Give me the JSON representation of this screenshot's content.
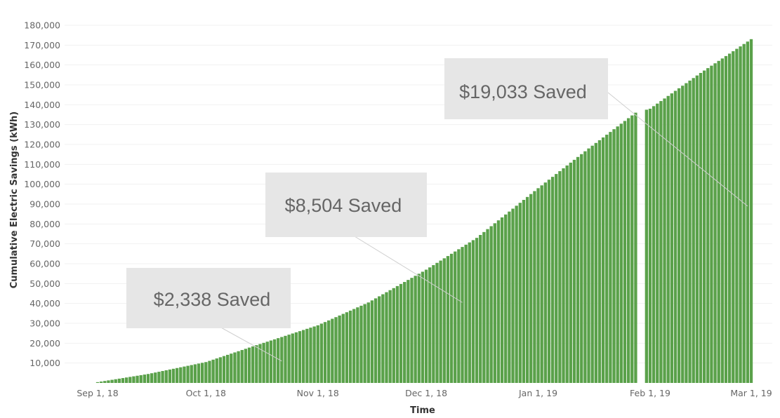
{
  "chart_data": {
    "type": "bar",
    "ylabel": "Cumulative Electric Savings (kWh)",
    "xlabel": "Time",
    "ylim": [
      0,
      180000
    ],
    "y_ticks": [
      10000,
      20000,
      30000,
      40000,
      50000,
      60000,
      70000,
      80000,
      90000,
      100000,
      110000,
      120000,
      130000,
      140000,
      150000,
      160000,
      170000,
      180000
    ],
    "y_tick_labels": [
      "10,000",
      "20,000",
      "30,000",
      "40,000",
      "50,000",
      "60,000",
      "70,000",
      "80,000",
      "90,000",
      "100,000",
      "110,000",
      "120,000",
      "130,000",
      "140,000",
      "150,000",
      "160,000",
      "170,000",
      "180,000"
    ],
    "x_ticks": [
      {
        "date": "2018-09-01",
        "label": "Sep 1, 18"
      },
      {
        "date": "2018-10-01",
        "label": "Oct 1, 18"
      },
      {
        "date": "2018-11-01",
        "label": "Nov 1, 18"
      },
      {
        "date": "2018-12-01",
        "label": "Dec 1, 18"
      },
      {
        "date": "2019-01-01",
        "label": "Jan 1, 19"
      },
      {
        "date": "2019-02-01",
        "label": "Feb 1, 19"
      },
      {
        "date": "2019-03-01",
        "label": "Mar 1, 19"
      }
    ],
    "bar_color": "#5aa14a",
    "series": [
      {
        "points": [
          [
            "2018-09-01",
            400
          ],
          [
            "2018-09-15",
            4500
          ],
          [
            "2018-10-01",
            10500
          ],
          [
            "2018-10-15",
            19000
          ],
          [
            "2018-11-01",
            29000
          ],
          [
            "2018-11-15",
            40500
          ],
          [
            "2018-12-01",
            57000
          ],
          [
            "2018-12-15",
            73000
          ],
          [
            "2019-01-01",
            98000
          ],
          [
            "2019-01-15",
            118000
          ],
          [
            "2019-01-28",
            136000
          ],
          [
            "2019-02-01",
            138000
          ],
          [
            "2019-02-15",
            156000
          ],
          [
            "2019-03-01",
            173000
          ]
        ],
        "gap_dates": [
          "2019-01-29",
          "2019-01-30"
        ]
      }
    ],
    "grid": "horizontal",
    "annotations": [
      {
        "text": "$2,338 Saved",
        "date": "2018-10-22",
        "value": 11000
      },
      {
        "text": "$8,504 Saved",
        "date": "2018-12-11",
        "value": 40500
      },
      {
        "text": "$19,033 Saved",
        "date": "2019-02-28",
        "value": 89000
      }
    ]
  }
}
